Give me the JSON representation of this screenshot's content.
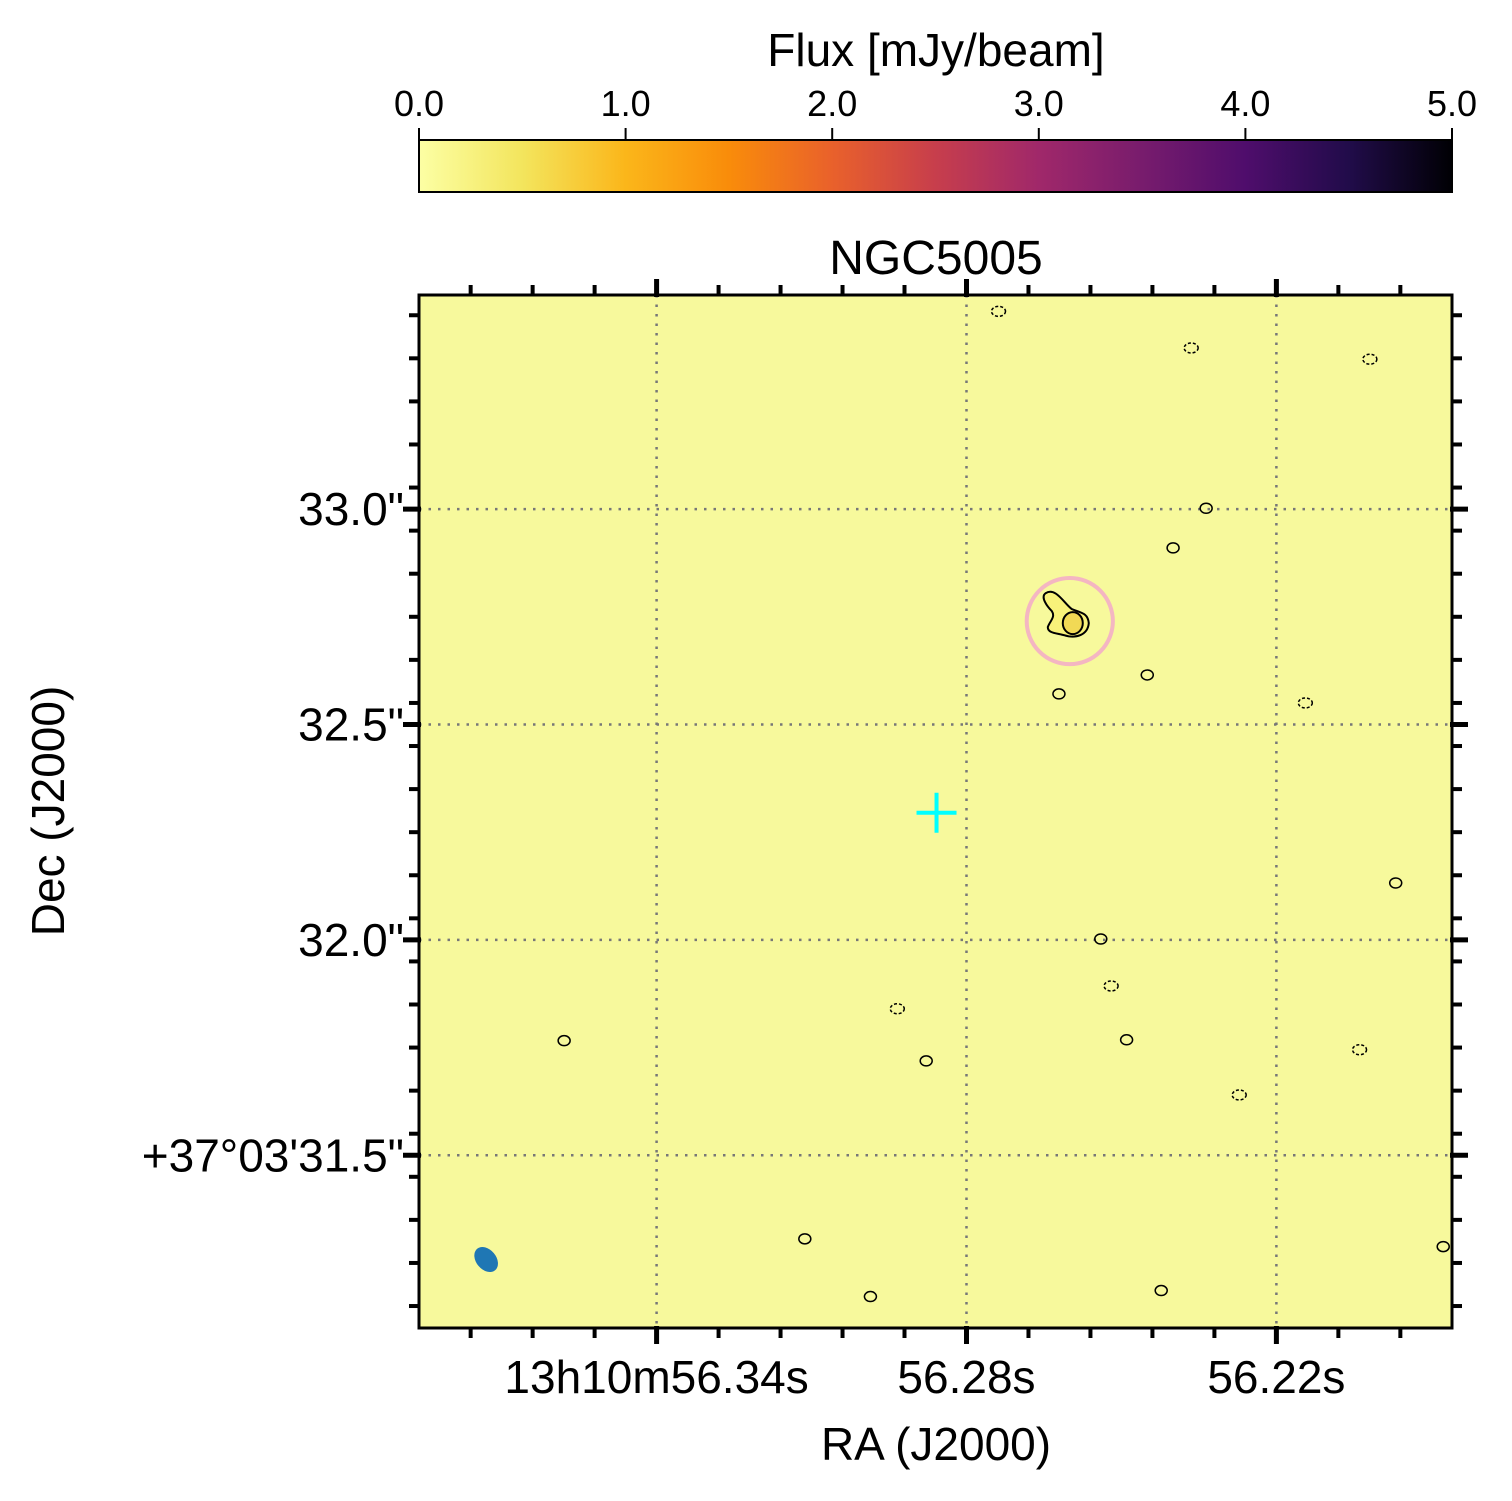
{
  "chart_data": {
    "type": "heatmap",
    "title": "NGC5005",
    "xlabel": "RA (J2000)",
    "ylabel": "Dec (J2000)",
    "x_unit": "RA seconds (13h10m)",
    "y_unit": "Dec arcsec (+37°03')",
    "xlim": [
      56.386,
      56.186
    ],
    "ylim": [
      31.099,
      33.497
    ],
    "x_ticks": [
      {
        "value": 56.34,
        "label": "13h10m56.34s"
      },
      {
        "value": 56.28,
        "label": "56.28s"
      },
      {
        "value": 56.22,
        "label": "56.22s"
      }
    ],
    "y_ticks": [
      {
        "value": 33.0,
        "label": "33.0\""
      },
      {
        "value": 32.5,
        "label": "32.5\""
      },
      {
        "value": 32.0,
        "label": "32.0\""
      },
      {
        "value": 31.5,
        "label": "+37°03'31.5\""
      }
    ],
    "grid": true,
    "colorbar": {
      "label": "Flux [mJy/beam]",
      "range": [
        0.0,
        5.0
      ],
      "colormap": "inferno_r",
      "ticks": [
        "0.0",
        "1.0",
        "2.0",
        "3.0",
        "4.0",
        "5.0"
      ],
      "placement": "top"
    },
    "background_color": "#f7f99c",
    "source": {
      "ra": 56.26,
      "dec": 32.74,
      "circle_radius_arcsec": 0.1,
      "circle_color": "#f4b6c2"
    },
    "marker_cross": {
      "ra": 56.2858,
      "dec": 32.295,
      "color": "#00ffff"
    },
    "beam": {
      "ra": 56.373,
      "dec": 31.258,
      "color": "#1f77b4"
    },
    "contours_positive": [
      [
        56.2336,
        33.002
      ],
      [
        56.24,
        32.91
      ],
      [
        56.245,
        32.615
      ],
      [
        56.2621,
        32.571
      ],
      [
        56.254,
        32.002
      ],
      [
        56.249,
        31.768
      ],
      [
        56.2878,
        31.719
      ],
      [
        56.3579,
        31.766
      ],
      [
        56.1969,
        32.132
      ],
      [
        56.2423,
        31.186
      ],
      [
        56.3113,
        31.306
      ],
      [
        56.2986,
        31.172
      ],
      [
        56.1877,
        31.288
      ]
    ],
    "contours_negative": [
      [
        56.2738,
        33.459
      ],
      [
        56.2365,
        33.374
      ],
      [
        56.2019,
        33.348
      ],
      [
        56.2144,
        32.55
      ],
      [
        56.252,
        31.893
      ],
      [
        56.2039,
        31.745
      ],
      [
        56.2934,
        31.84
      ],
      [
        56.2272,
        31.64
      ]
    ]
  }
}
